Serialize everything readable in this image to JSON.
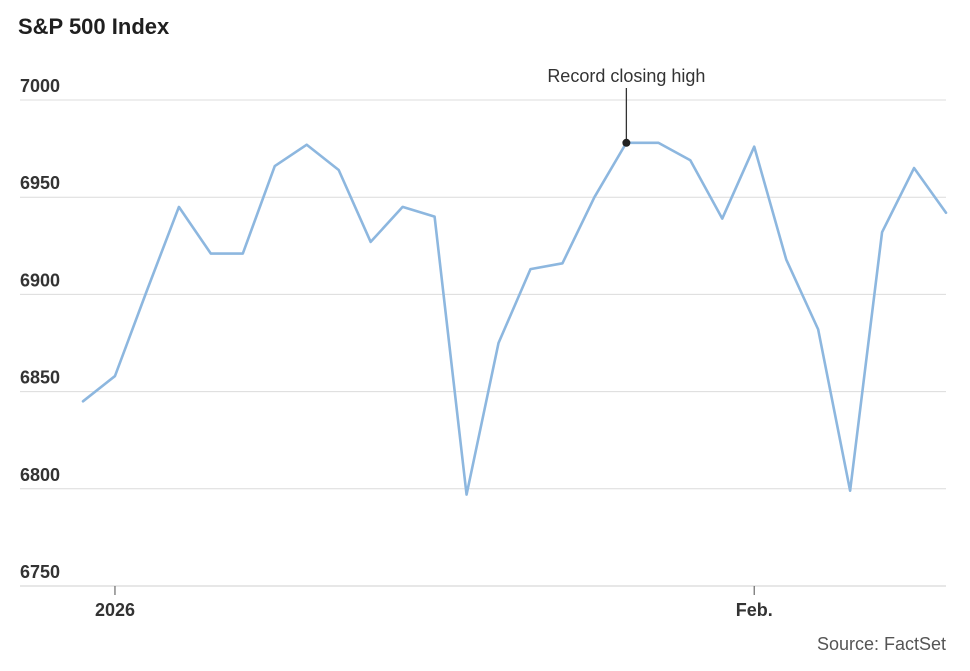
{
  "chart_data": {
    "type": "line",
    "title": "S&P 500 Index",
    "source": "Source: FactSet",
    "annotation": {
      "label": "Record closing high",
      "point_index": 17
    },
    "xlabel": "",
    "ylabel": "",
    "ylim": [
      6750,
      7000
    ],
    "grid": true,
    "y_ticks": [
      7000,
      6950,
      6900,
      6850,
      6800,
      6750
    ],
    "x_tick_labels": [
      {
        "label": "2026",
        "index": 1
      },
      {
        "label": "Feb.",
        "index": 21
      }
    ],
    "series": [
      {
        "values": [
          6845,
          6858,
          6902,
          6945,
          6921,
          6921,
          6966,
          6977,
          6964,
          6927,
          6945,
          6940,
          6797,
          6875,
          6913,
          6916,
          6950,
          6978,
          6978,
          6969,
          6939,
          6976,
          6918,
          6882,
          6799,
          6932,
          6965,
          6942
        ]
      }
    ]
  },
  "colors": {
    "series": "#8db7df",
    "grid": "#dcdcdc",
    "text": "#333333"
  }
}
